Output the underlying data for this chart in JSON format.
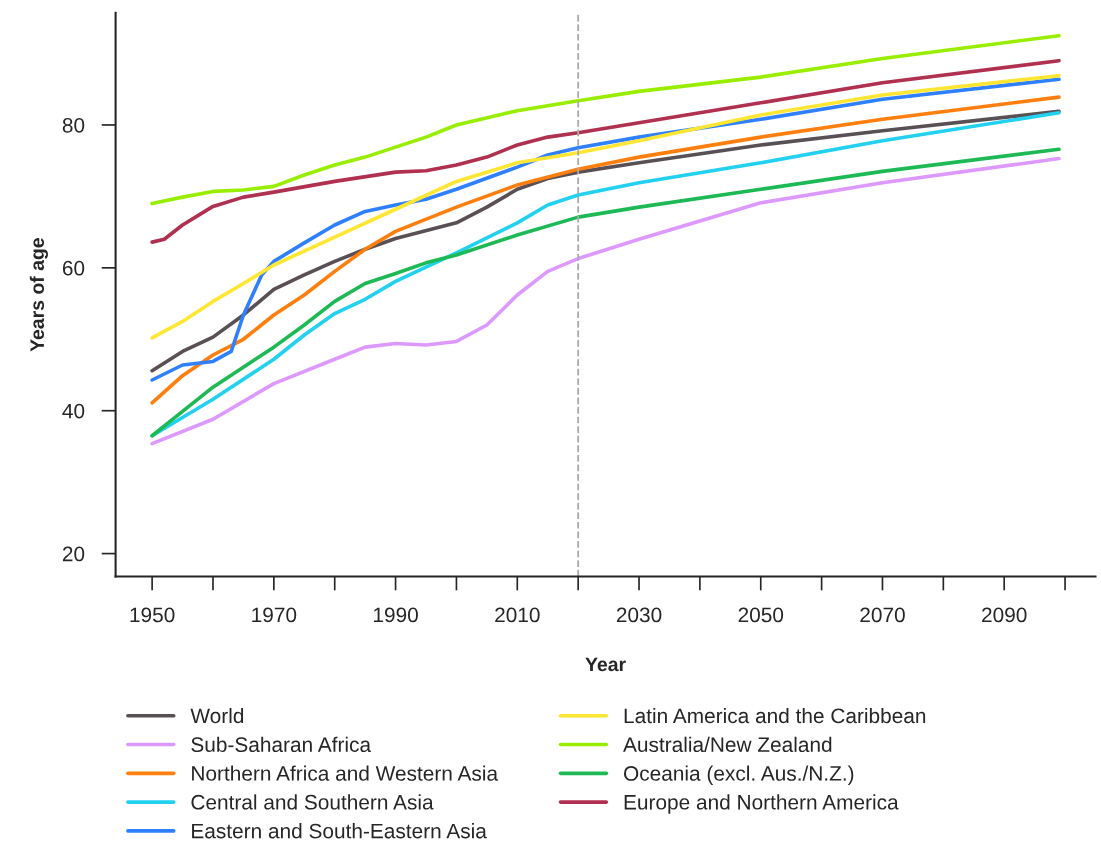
{
  "chart_data": {
    "type": "line",
    "xlabel": "Year",
    "ylabel": "Years of age",
    "xlim": [
      1944,
      2105
    ],
    "ylim": [
      16.8,
      95.7
    ],
    "xticks": [
      1950,
      {
        "value": 1960,
        "label": null
      },
      1970,
      {
        "value": 1980,
        "label": null
      },
      1990,
      {
        "value": 2000,
        "label": null
      },
      2010,
      {
        "value": 2020,
        "label": null
      },
      2030,
      {
        "value": 2040,
        "label": null
      },
      2050,
      {
        "value": 2060,
        "label": null
      },
      2070,
      {
        "value": 2080,
        "label": null
      },
      2090,
      {
        "value": 2100,
        "label": null
      }
    ],
    "yticks": [
      20,
      40,
      60,
      80
    ],
    "grid": false,
    "legend": "bottom",
    "line_style": "solid",
    "ref_lines": [
      {
        "axis": "x",
        "value": 2020,
        "color": "#aaaaaa",
        "line_style": "dashed"
      }
    ],
    "series": [
      {
        "name": "World",
        "color": "#595055",
        "x": [
          1950,
          1955,
          1960,
          1965,
          1970,
          1975,
          1980,
          1985,
          1990,
          2000,
          2005,
          2010,
          2015,
          2020,
          2030,
          2050,
          2070,
          2099
        ],
        "values": [
          45.6,
          48.3,
          50.3,
          53.4,
          57.0,
          59.0,
          60.9,
          62.6,
          64.1,
          66.3,
          68.5,
          71.0,
          72.5,
          73.4,
          74.7,
          77.2,
          79.2,
          81.9
        ]
      },
      {
        "name": "Sub-Saharan Africa",
        "color": "#dd99ff",
        "x": [
          1950,
          1960,
          1970,
          1980,
          1985,
          1990,
          1995,
          2000,
          2005,
          2010,
          2015,
          2020,
          2030,
          2050,
          2070,
          2099
        ],
        "values": [
          35.4,
          38.8,
          43.8,
          47.2,
          48.9,
          49.4,
          49.2,
          49.7,
          52.0,
          56.2,
          59.5,
          61.3,
          64.0,
          69.1,
          71.9,
          75.3
        ]
      },
      {
        "name": "Northern Africa and Western Asia",
        "color": "#ff7f0e",
        "x": [
          1950,
          1955,
          1960,
          1965,
          1970,
          1975,
          1980,
          1985,
          1990,
          2000,
          2010,
          2020,
          2030,
          2050,
          2070,
          2099
        ],
        "values": [
          41.1,
          44.9,
          47.8,
          50.0,
          53.4,
          56.2,
          59.5,
          62.6,
          65.1,
          68.5,
          71.6,
          73.8,
          75.5,
          78.3,
          80.8,
          83.9
        ]
      },
      {
        "name": "Central and Southern Asia",
        "color": "#22d0f0",
        "x": [
          1950,
          1960,
          1970,
          1975,
          1980,
          1985,
          1990,
          2000,
          2010,
          2015,
          2020,
          2030,
          2050,
          2070,
          2099
        ],
        "values": [
          36.5,
          41.6,
          47.2,
          50.6,
          53.6,
          55.6,
          58.1,
          62.1,
          66.3,
          68.8,
          70.2,
          71.9,
          74.7,
          77.8,
          81.7
        ]
      },
      {
        "name": "Eastern and South-Eastern Asia",
        "color": "#2f80ff",
        "x": [
          1950,
          1955,
          1960,
          1963,
          1965,
          1968,
          1970,
          1975,
          1980,
          1985,
          1990,
          1995,
          2000,
          2010,
          2015,
          2020,
          2030,
          2050,
          2070,
          2099
        ],
        "values": [
          44.3,
          46.4,
          46.9,
          48.3,
          53.4,
          59.0,
          60.9,
          63.5,
          66.0,
          67.9,
          68.8,
          69.6,
          71.0,
          74.1,
          75.8,
          76.8,
          78.3,
          80.8,
          83.6,
          86.4
        ]
      },
      {
        "name": "Latin America and the Caribbean",
        "color": "#ffe633",
        "x": [
          1950,
          1955,
          1960,
          1965,
          1970,
          1980,
          1990,
          2000,
          2010,
          2020,
          2030,
          2050,
          2070,
          2099
        ],
        "values": [
          50.2,
          52.5,
          55.3,
          57.8,
          60.4,
          64.3,
          68.2,
          72.1,
          74.7,
          76.1,
          77.8,
          81.4,
          84.2,
          86.9
        ]
      },
      {
        "name": "Australia/New Zealand",
        "color": "#99ee00",
        "x": [
          1950,
          1955,
          1960,
          1965,
          1970,
          1975,
          1980,
          1985,
          1990,
          1995,
          2000,
          2010,
          2020,
          2030,
          2050,
          2070,
          2099
        ],
        "values": [
          69.0,
          69.9,
          70.7,
          70.9,
          71.4,
          73.0,
          74.4,
          75.5,
          76.9,
          78.3,
          80.0,
          82.0,
          83.4,
          84.7,
          86.7,
          89.3,
          92.5
        ]
      },
      {
        "name": "Oceania (excl. Aus./N.Z.)",
        "color": "#1db954",
        "x": [
          1950,
          1955,
          1960,
          1970,
          1975,
          1980,
          1985,
          1990,
          1995,
          2000,
          2010,
          2020,
          2030,
          2050,
          2070,
          2099
        ],
        "values": [
          36.5,
          39.9,
          43.3,
          48.9,
          52.0,
          55.3,
          57.8,
          59.2,
          60.7,
          61.8,
          64.6,
          67.1,
          68.5,
          71.0,
          73.5,
          76.6
        ]
      },
      {
        "name": "Europe and Northern America",
        "color": "#b03050",
        "x": [
          1950,
          1952,
          1955,
          1960,
          1965,
          1970,
          1980,
          1990,
          1995,
          2000,
          2005,
          2010,
          2015,
          2020,
          2030,
          2050,
          2070,
          2099
        ],
        "values": [
          63.6,
          64.0,
          66.0,
          68.6,
          69.9,
          70.6,
          72.1,
          73.4,
          73.6,
          74.4,
          75.5,
          77.2,
          78.3,
          78.9,
          80.3,
          83.1,
          85.9,
          89.0
        ]
      }
    ]
  }
}
